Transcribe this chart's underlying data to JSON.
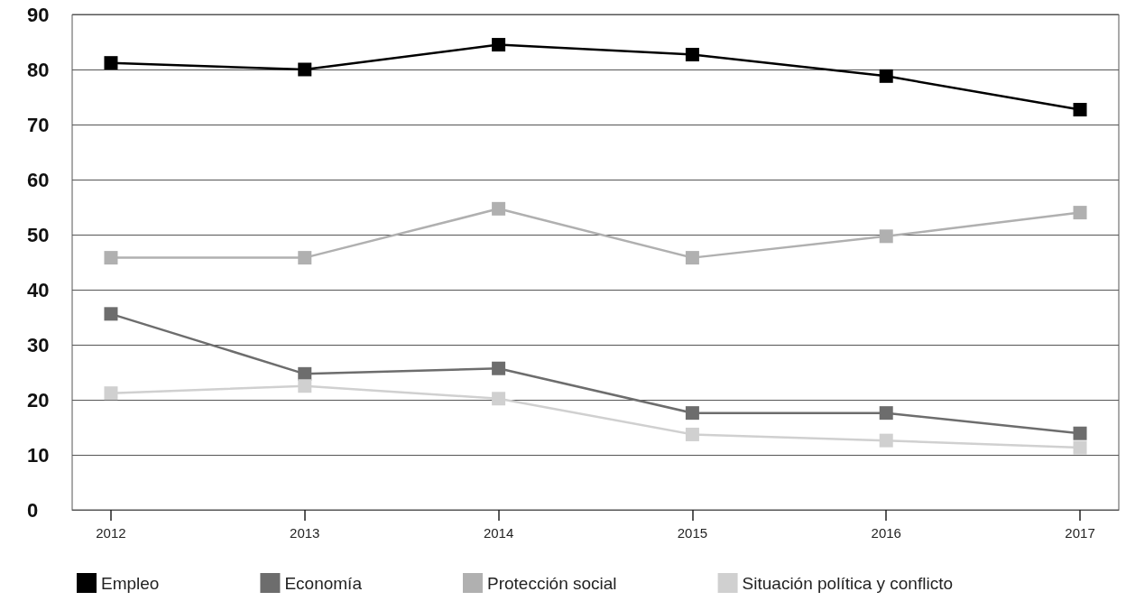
{
  "chart_data": {
    "type": "line",
    "x": [
      2012,
      2013,
      2014,
      2015,
      2016,
      2017
    ],
    "xlim": [
      2011.8,
      2017.2
    ],
    "xticks": [
      2012,
      2013,
      2014,
      2015,
      2016,
      2017
    ],
    "ylim": [
      0,
      90
    ],
    "yticks": [
      0,
      10,
      20,
      30,
      40,
      50,
      60,
      70,
      80,
      90
    ],
    "grid": "y",
    "legend": "bottom",
    "marker": "square",
    "line_style": "solid",
    "series": [
      {
        "name": "Empleo",
        "color": "#000000",
        "values": [
          81.2,
          80,
          84.5,
          82.7,
          78.8,
          72.7
        ]
      },
      {
        "name": "Economía",
        "color": "#6d6d6d",
        "values": [
          35.6,
          24.7,
          25.7,
          17.6,
          17.6,
          13.9
        ]
      },
      {
        "name": "Protección social",
        "color": "#b0b0b0",
        "values": [
          45.8,
          45.8,
          54.7,
          45.8,
          49.7,
          54
        ]
      },
      {
        "name": "Situación política y conflicto",
        "color": "#d0d0d0",
        "values": [
          21.2,
          22.5,
          20.2,
          13.7,
          12.6,
          11.3
        ]
      }
    ]
  }
}
